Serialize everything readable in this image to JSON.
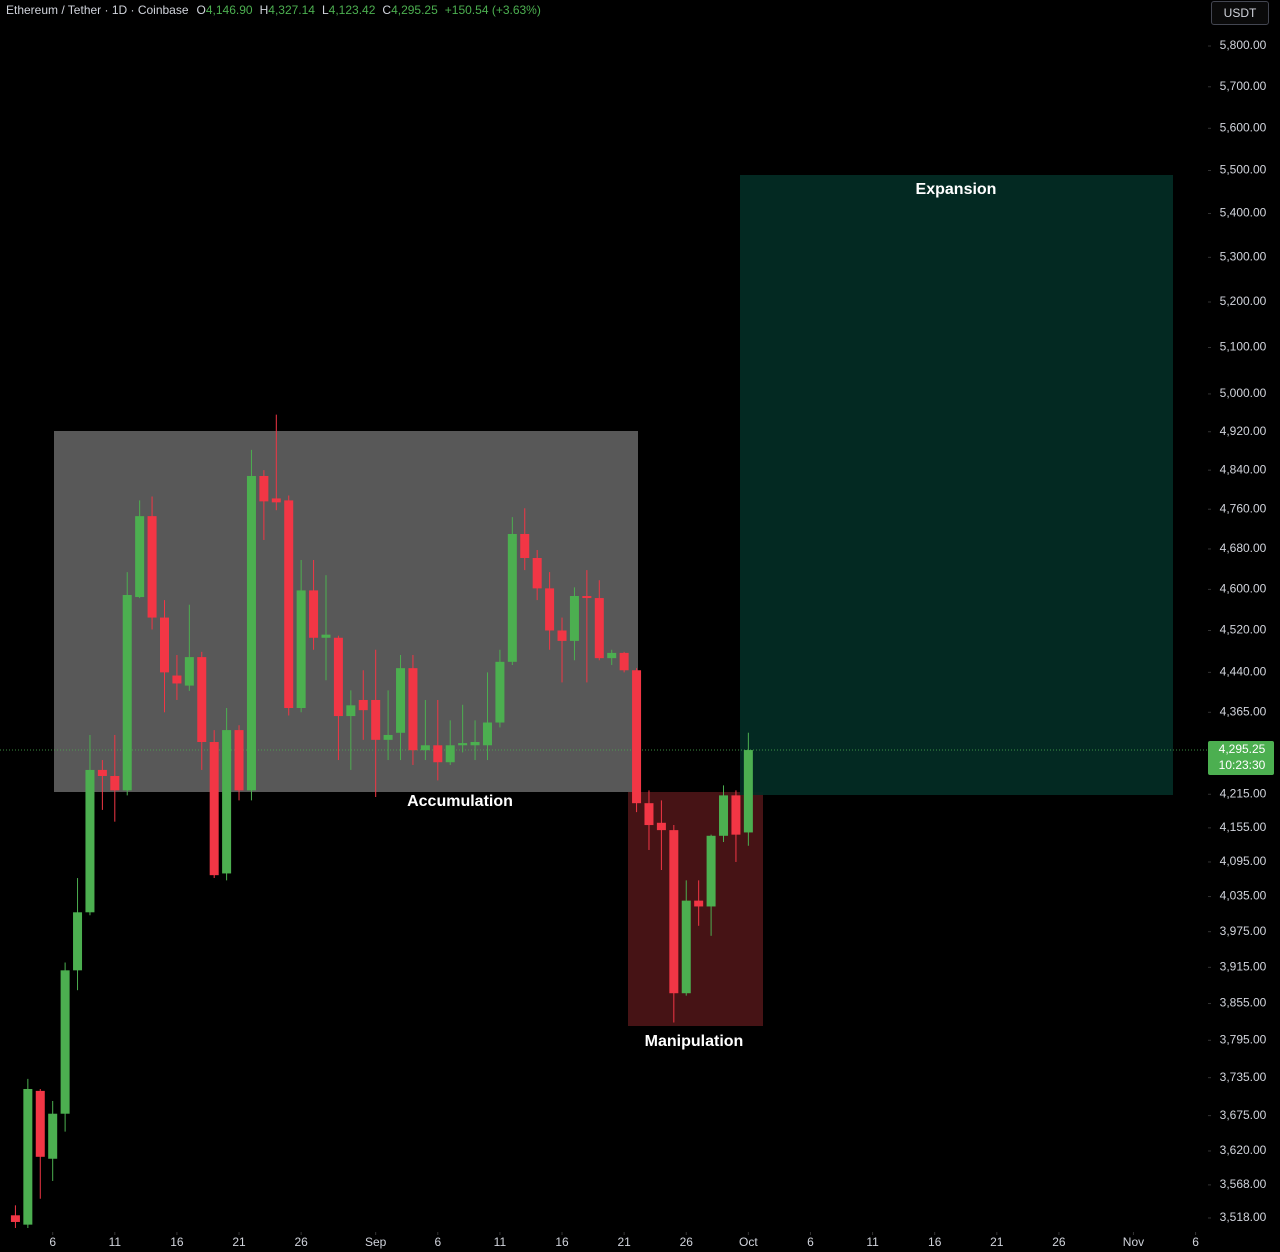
{
  "chart_data": {
    "type": "candlestick",
    "legend": {
      "symbol": "Ethereum / Tether · 1D · Coinbase",
      "open": {
        "key": "O",
        "value": "4,146.90"
      },
      "high": {
        "key": "H",
        "value": "4,327.14"
      },
      "low": {
        "key": "L",
        "value": "4,123.42"
      },
      "close": {
        "key": "C",
        "value": "4,295.25"
      },
      "change": "+150.54 (+3.63%)"
    },
    "currency": "USDT",
    "last_price_label": "4,295.25",
    "countdown": "10:23:30",
    "up_color": "#4caf50",
    "down_color": "#f23645",
    "log_scale": true,
    "x": [
      "08-03",
      "08-04",
      "08-05",
      "08-06",
      "08-07",
      "08-08",
      "08-09",
      "08-10",
      "08-11",
      "08-12",
      "08-13",
      "08-14",
      "08-15",
      "08-16",
      "08-17",
      "08-18",
      "08-19",
      "08-20",
      "08-21",
      "08-22",
      "08-23",
      "08-24",
      "08-25",
      "08-26",
      "08-27",
      "08-28",
      "08-29",
      "08-30",
      "08-31",
      "09-01",
      "09-02",
      "09-03",
      "09-04",
      "09-05",
      "09-06",
      "09-07",
      "09-08",
      "09-09",
      "09-10",
      "09-11",
      "09-12",
      "09-13",
      "09-14",
      "09-15",
      "09-16",
      "09-17",
      "09-18",
      "09-19",
      "09-20",
      "09-21",
      "09-22",
      "09-23",
      "09-24",
      "09-25",
      "09-26",
      "09-27",
      "09-28",
      "09-29",
      "09-30",
      "10-01"
    ],
    "open": [
      3522,
      3508,
      3714,
      3608,
      3678,
      3910,
      4008,
      4259,
      4248,
      4222,
      4585,
      4746,
      4545,
      4434,
      4415,
      4469,
      4310,
      4075,
      4332,
      4222,
      4828,
      4782,
      4778,
      4373,
      4598,
      4506,
      4506,
      4358,
      4388,
      4388,
      4314,
      4327,
      4448,
      4295,
      4304,
      4273,
      4304,
      4304,
      4304,
      4346,
      4460,
      4710,
      4662,
      4602,
      4520,
      4500,
      4587,
      4583,
      4467,
      4477,
      4444,
      4199,
      4164,
      4151,
      3872,
      4028,
      4018,
      4141,
      4213,
      4146.9
    ],
    "high": [
      3537,
      3733,
      3717,
      3698,
      3923,
      4067,
      4323,
      4277,
      4323,
      4634,
      4778,
      4786,
      4579,
      4473,
      4570,
      4479,
      4332,
      4373,
      4341,
      4882,
      4840,
      4956,
      4788,
      4658,
      4658,
      4628,
      4510,
      4406,
      4444,
      4483,
      4406,
      4473,
      4473,
      4388,
      4388,
      4350,
      4379,
      4350,
      4440,
      4483,
      4744,
      4762,
      4678,
      4634,
      4545,
      4604,
      4638,
      4618,
      4483,
      4479,
      4448,
      4222,
      4204,
      4160,
      4063,
      4063,
      4143,
      4231,
      4222,
      4327.14
    ],
    "low": [
      3503,
      3503,
      3547,
      3574,
      3650,
      3877,
      4003,
      4187,
      4166,
      4213,
      4583,
      4522,
      4365,
      4388,
      4405,
      4259,
      4067,
      4063,
      4204,
      4204,
      4698,
      4758,
      4359,
      4365,
      4483,
      4425,
      4277,
      4259,
      4314,
      4210,
      4277,
      4277,
      4268,
      4277,
      4240,
      4268,
      4291,
      4277,
      4277,
      4337,
      4454,
      4638,
      4579,
      4483,
      4421,
      4463,
      4421,
      4463,
      4454,
      4440,
      4183,
      4116,
      4081,
      3824,
      3868,
      3985,
      3968,
      4130,
      4095,
      4123.42
    ],
    "close": [
      3512,
      3717,
      3611,
      3678,
      3910,
      4008,
      4259,
      4248,
      4222,
      4589,
      4746,
      4545,
      4440,
      4419,
      4469,
      4310,
      4072,
      4332,
      4222,
      4828,
      4776,
      4774,
      4373,
      4598,
      4506,
      4512,
      4358,
      4378,
      4369,
      4314,
      4323,
      4448,
      4295,
      4304,
      4273,
      4304,
      4308,
      4310,
      4346,
      4460,
      4710,
      4662,
      4602,
      4520,
      4500,
      4587,
      4583,
      4467,
      4477,
      4444,
      4199,
      4160,
      4151,
      3872,
      4028,
      4018,
      4141,
      4213,
      4143,
      4295.25
    ],
    "xlim": [
      "08-02",
      "11-07"
    ],
    "xticks": [
      {
        "value": "08-06",
        "label": "6"
      },
      {
        "value": "08-11",
        "label": "11"
      },
      {
        "value": "08-16",
        "label": "16"
      },
      {
        "value": "08-21",
        "label": "21"
      },
      {
        "value": "08-26",
        "label": "26"
      },
      {
        "value": "09-01",
        "label": "Sep"
      },
      {
        "value": "09-06",
        "label": "6"
      },
      {
        "value": "09-11",
        "label": "11"
      },
      {
        "value": "09-16",
        "label": "16"
      },
      {
        "value": "09-21",
        "label": "21"
      },
      {
        "value": "09-26",
        "label": "26"
      },
      {
        "value": "10-01",
        "label": "Oct"
      },
      {
        "value": "10-06",
        "label": "6"
      },
      {
        "value": "10-11",
        "label": "11"
      },
      {
        "value": "10-16",
        "label": "16"
      },
      {
        "value": "10-21",
        "label": "21"
      },
      {
        "value": "10-26",
        "label": "26"
      },
      {
        "value": "11-01",
        "label": "Nov"
      },
      {
        "value": "11-06",
        "label": "6"
      }
    ],
    "ylim": [
      3497,
      5915
    ],
    "yticks": [
      {
        "value": 5800,
        "label": "5,800.00"
      },
      {
        "value": 5700,
        "label": "5,700.00"
      },
      {
        "value": 5600,
        "label": "5,600.00"
      },
      {
        "value": 5500,
        "label": "5,500.00"
      },
      {
        "value": 5400,
        "label": "5,400.00"
      },
      {
        "value": 5300,
        "label": "5,300.00"
      },
      {
        "value": 5200,
        "label": "5,200.00"
      },
      {
        "value": 5100,
        "label": "5,100.00"
      },
      {
        "value": 5000,
        "label": "5,000.00"
      },
      {
        "value": 4920,
        "label": "4,920.00"
      },
      {
        "value": 4840,
        "label": "4,840.00"
      },
      {
        "value": 4760,
        "label": "4,760.00"
      },
      {
        "value": 4680,
        "label": "4,680.00"
      },
      {
        "value": 4600,
        "label": "4,600.00"
      },
      {
        "value": 4520,
        "label": "4,520.00"
      },
      {
        "value": 4440,
        "label": "4,440.00"
      },
      {
        "value": 4365,
        "label": "4,365.00"
      },
      {
        "value": 4215,
        "label": "4,215.00"
      },
      {
        "value": 4155,
        "label": "4,155.00"
      },
      {
        "value": 4095,
        "label": "4,095.00"
      },
      {
        "value": 4035,
        "label": "4,035.00"
      },
      {
        "value": 3975,
        "label": "3,975.00"
      },
      {
        "value": 3915,
        "label": "3,915.00"
      },
      {
        "value": 3855,
        "label": "3,855.00"
      },
      {
        "value": 3795,
        "label": "3,795.00"
      },
      {
        "value": 3735,
        "label": "3,735.00"
      },
      {
        "value": 3675,
        "label": "3,675.00"
      },
      {
        "value": 3620,
        "label": "3,620.00"
      },
      {
        "value": 3568,
        "label": "3,568.00"
      },
      {
        "value": 3518,
        "label": "3,518.00"
      }
    ],
    "zones": [
      {
        "label": "Accumulation",
        "color": "#5d5d5d"
      },
      {
        "label": "Manipulation",
        "color": "#4a1416"
      },
      {
        "label": "Expansion",
        "color": "#032b24"
      }
    ]
  }
}
